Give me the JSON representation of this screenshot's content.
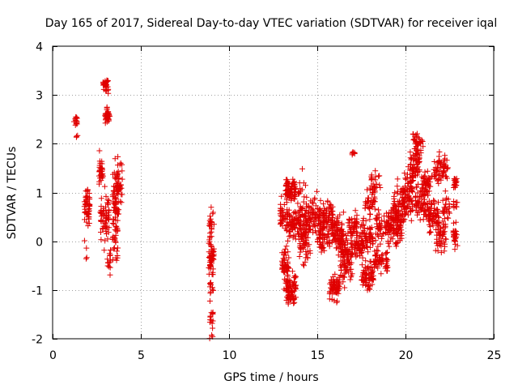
{
  "chart_data": {
    "type": "scatter",
    "title": "Day 165 of 2017, Sidereal Day-to-day VTEC variation (SDTVAR) for receiver iqal",
    "xlabel": "GPS time / hours",
    "ylabel": "SDTVAR / TECUs",
    "xlim": [
      0,
      25
    ],
    "ylim": [
      -2,
      4
    ],
    "xticks": [
      0,
      5,
      10,
      15,
      20,
      25
    ],
    "yticks": [
      -2,
      -1,
      0,
      1,
      2,
      3,
      4
    ],
    "grid": true,
    "legend": "none",
    "marker": "+",
    "series_color": "#e00000",
    "clusters": [
      {
        "x0": 1.2,
        "x1": 1.4,
        "yc": 2.45,
        "spread": 0.1,
        "n": 14
      },
      {
        "x0": 1.3,
        "x1": 1.5,
        "yc": 2.15,
        "spread": 0.05,
        "n": 3
      },
      {
        "x0": 1.8,
        "x1": 2.1,
        "yc": 0.7,
        "spread": 0.35,
        "n": 55
      },
      {
        "x0": 1.8,
        "x1": 2.0,
        "yc": -0.2,
        "spread": 0.2,
        "n": 4
      },
      {
        "x0": 2.6,
        "x1": 2.9,
        "yc": 1.45,
        "spread": 0.25,
        "n": 30
      },
      {
        "x0": 2.7,
        "x1": 3.2,
        "yc": 0.45,
        "spread": 0.5,
        "n": 60
      },
      {
        "x0": 2.85,
        "x1": 3.15,
        "yc": 3.2,
        "spread": 0.12,
        "n": 30
      },
      {
        "x0": 2.95,
        "x1": 3.25,
        "yc": 2.55,
        "spread": 0.12,
        "n": 30
      },
      {
        "x0": 3.0,
        "x1": 3.1,
        "yc": 2.75,
        "spread": 0.05,
        "n": 3
      },
      {
        "x0": 3.1,
        "x1": 3.3,
        "yc": -0.4,
        "spread": 0.25,
        "n": 15
      },
      {
        "x0": 3.4,
        "x1": 3.7,
        "yc": 0.7,
        "spread": 0.9,
        "n": 80
      },
      {
        "x0": 3.6,
        "x1": 3.95,
        "yc": 1.15,
        "spread": 0.6,
        "n": 45
      },
      {
        "x0": 8.85,
        "x1": 9.15,
        "yc": 0.35,
        "spread": 0.3,
        "n": 20
      },
      {
        "x0": 8.85,
        "x1": 9.15,
        "yc": -0.5,
        "spread": 0.5,
        "n": 60
      },
      {
        "x0": 8.9,
        "x1": 9.1,
        "yc": -1.6,
        "spread": 0.3,
        "n": 15
      },
      {
        "x0": 12.9,
        "x1": 13.3,
        "yc": 0.5,
        "spread": 0.3,
        "n": 40
      },
      {
        "x0": 13.0,
        "x1": 13.4,
        "yc": -0.5,
        "spread": 0.35,
        "n": 50
      },
      {
        "x0": 13.2,
        "x1": 13.8,
        "yc": -0.95,
        "spread": 0.25,
        "n": 90
      },
      {
        "x0": 13.2,
        "x1": 13.8,
        "yc": 1.05,
        "spread": 0.2,
        "n": 70
      },
      {
        "x0": 13.3,
        "x1": 14.0,
        "yc": 0.3,
        "spread": 0.35,
        "n": 70
      },
      {
        "x0": 13.9,
        "x1": 14.4,
        "yc": 0.55,
        "spread": 0.6,
        "n": 60
      },
      {
        "x0": 14.0,
        "x1": 14.6,
        "yc": 0.0,
        "spread": 0.45,
        "n": 60
      },
      {
        "x0": 14.5,
        "x1": 15.2,
        "yc": 0.55,
        "spread": 0.3,
        "n": 70
      },
      {
        "x0": 15.0,
        "x1": 15.7,
        "yc": 0.1,
        "spread": 0.35,
        "n": 70
      },
      {
        "x0": 15.3,
        "x1": 15.9,
        "yc": 0.55,
        "spread": 0.3,
        "n": 50
      },
      {
        "x0": 15.7,
        "x1": 16.3,
        "yc": -0.95,
        "spread": 0.22,
        "n": 70
      },
      {
        "x0": 15.8,
        "x1": 16.5,
        "yc": 0.15,
        "spread": 0.35,
        "n": 90
      },
      {
        "x0": 16.3,
        "x1": 17.0,
        "yc": -0.3,
        "spread": 0.45,
        "n": 110
      },
      {
        "x0": 16.8,
        "x1": 17.3,
        "yc": 0.35,
        "spread": 0.2,
        "n": 40
      },
      {
        "x0": 16.95,
        "x1": 17.15,
        "yc": 1.8,
        "spread": 0.03,
        "n": 8
      },
      {
        "x0": 17.1,
        "x1": 17.6,
        "yc": -0.1,
        "spread": 0.25,
        "n": 50
      },
      {
        "x0": 17.5,
        "x1": 18.2,
        "yc": -0.7,
        "spread": 0.25,
        "n": 70
      },
      {
        "x0": 17.5,
        "x1": 18.2,
        "yc": 0.1,
        "spread": 0.3,
        "n": 60
      },
      {
        "x0": 17.7,
        "x1": 18.3,
        "yc": 0.8,
        "spread": 0.3,
        "n": 40
      },
      {
        "x0": 18.0,
        "x1": 18.6,
        "yc": 1.2,
        "spread": 0.3,
        "n": 25
      },
      {
        "x0": 18.2,
        "x1": 19.0,
        "yc": -0.4,
        "spread": 0.25,
        "n": 60
      },
      {
        "x0": 18.3,
        "x1": 19.2,
        "yc": 0.3,
        "spread": 0.25,
        "n": 70
      },
      {
        "x0": 19.0,
        "x1": 19.8,
        "yc": 0.3,
        "spread": 0.35,
        "n": 90
      },
      {
        "x0": 19.3,
        "x1": 20.0,
        "yc": 0.7,
        "spread": 0.35,
        "n": 60
      },
      {
        "x0": 19.8,
        "x1": 20.4,
        "yc": 1.0,
        "spread": 0.45,
        "n": 80
      },
      {
        "x0": 20.2,
        "x1": 20.8,
        "yc": 1.5,
        "spread": 0.3,
        "n": 60
      },
      {
        "x0": 20.4,
        "x1": 21.0,
        "yc": 2.0,
        "spread": 0.25,
        "n": 40
      },
      {
        "x0": 20.5,
        "x1": 21.3,
        "yc": 0.8,
        "spread": 0.3,
        "n": 70
      },
      {
        "x0": 20.9,
        "x1": 21.5,
        "yc": 1.2,
        "spread": 0.2,
        "n": 40
      },
      {
        "x0": 21.3,
        "x1": 21.9,
        "yc": 0.5,
        "spread": 0.35,
        "n": 60
      },
      {
        "x0": 21.6,
        "x1": 22.4,
        "yc": 1.5,
        "spread": 0.25,
        "n": 60
      },
      {
        "x0": 21.7,
        "x1": 22.3,
        "yc": 0.1,
        "spread": 0.3,
        "n": 50
      },
      {
        "x0": 22.1,
        "x1": 22.5,
        "yc": 0.7,
        "spread": 0.3,
        "n": 25
      },
      {
        "x0": 22.7,
        "x1": 22.95,
        "yc": 1.2,
        "spread": 0.12,
        "n": 20
      },
      {
        "x0": 22.7,
        "x1": 22.95,
        "yc": 0.1,
        "spread": 0.25,
        "n": 25
      },
      {
        "x0": 22.7,
        "x1": 22.95,
        "yc": 0.75,
        "spread": 0.1,
        "n": 8
      }
    ]
  }
}
